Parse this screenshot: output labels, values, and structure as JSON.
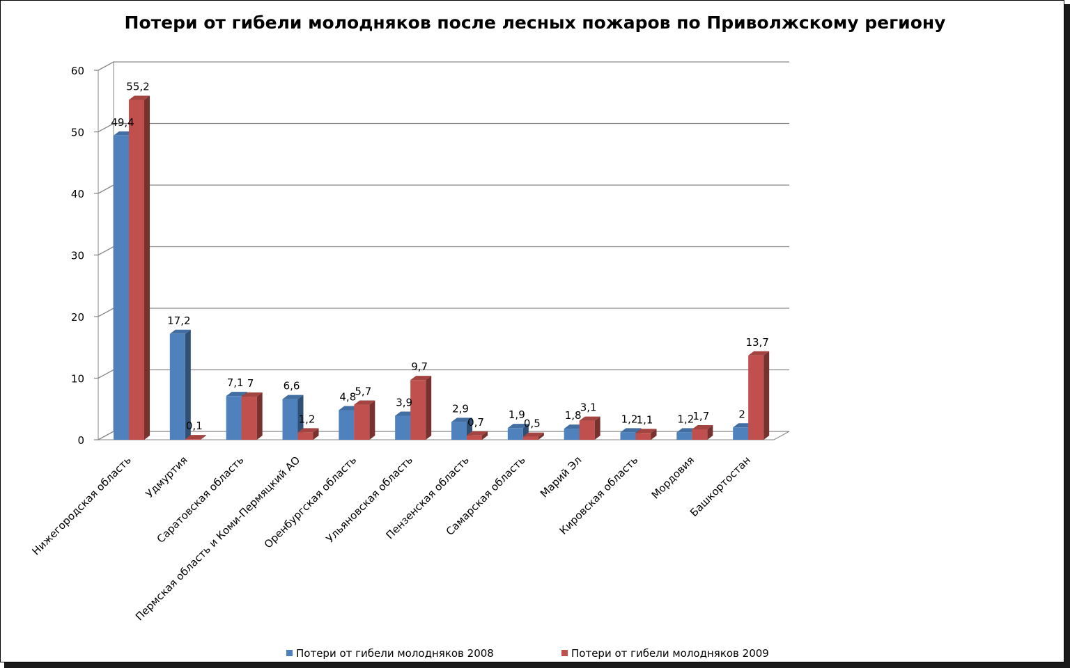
{
  "colors": {
    "series_2008": "#4f81bd",
    "series_2009": "#c0504d",
    "gridline": "#868686"
  },
  "chart_data": {
    "type": "bar",
    "title": "Потери от гибели молодняков  после лесных пожаров по Приволжскому региону",
    "xlabel": "",
    "ylabel": "",
    "ylim": [
      0,
      60
    ],
    "yticks": [
      "0",
      "10",
      "20",
      "30",
      "40",
      "50",
      "60"
    ],
    "grid": true,
    "legend_position": "bottom",
    "categories": [
      "Нижегородская область",
      "Удмуртия",
      "Саратовская область",
      "Пермская область и Коми-Пермяцкий АО",
      "Оренбургская область",
      "Ульяновская область",
      "Пензенская область",
      "Самарская область",
      "Марий Эл",
      "Кировская область",
      "Мордовия",
      "Башкортостан"
    ],
    "series": [
      {
        "name": "Потери от гибели молодняков 2008",
        "values": [
          49.4,
          17.2,
          7.1,
          6.6,
          4.8,
          3.9,
          2.9,
          1.9,
          1.8,
          1.2,
          1.2,
          2
        ],
        "labels": [
          "49,4",
          "17,2",
          "7,1",
          "6,6",
          "4,8",
          "3,9",
          "2,9",
          "1,9",
          "1,8",
          "1,2",
          "1,2",
          "2"
        ]
      },
      {
        "name": "Потери от гибели молодняков 2009",
        "values": [
          55.2,
          0.1,
          7,
          1.2,
          5.7,
          9.7,
          0.7,
          0.5,
          3.1,
          1.1,
          1.7,
          13.7
        ],
        "labels": [
          "55,2",
          "0,1",
          "7",
          "1,2",
          "5,7",
          "9,7",
          "0,7",
          "0,5",
          "3,1",
          "1,1",
          "1,7",
          "13,7"
        ]
      }
    ]
  }
}
